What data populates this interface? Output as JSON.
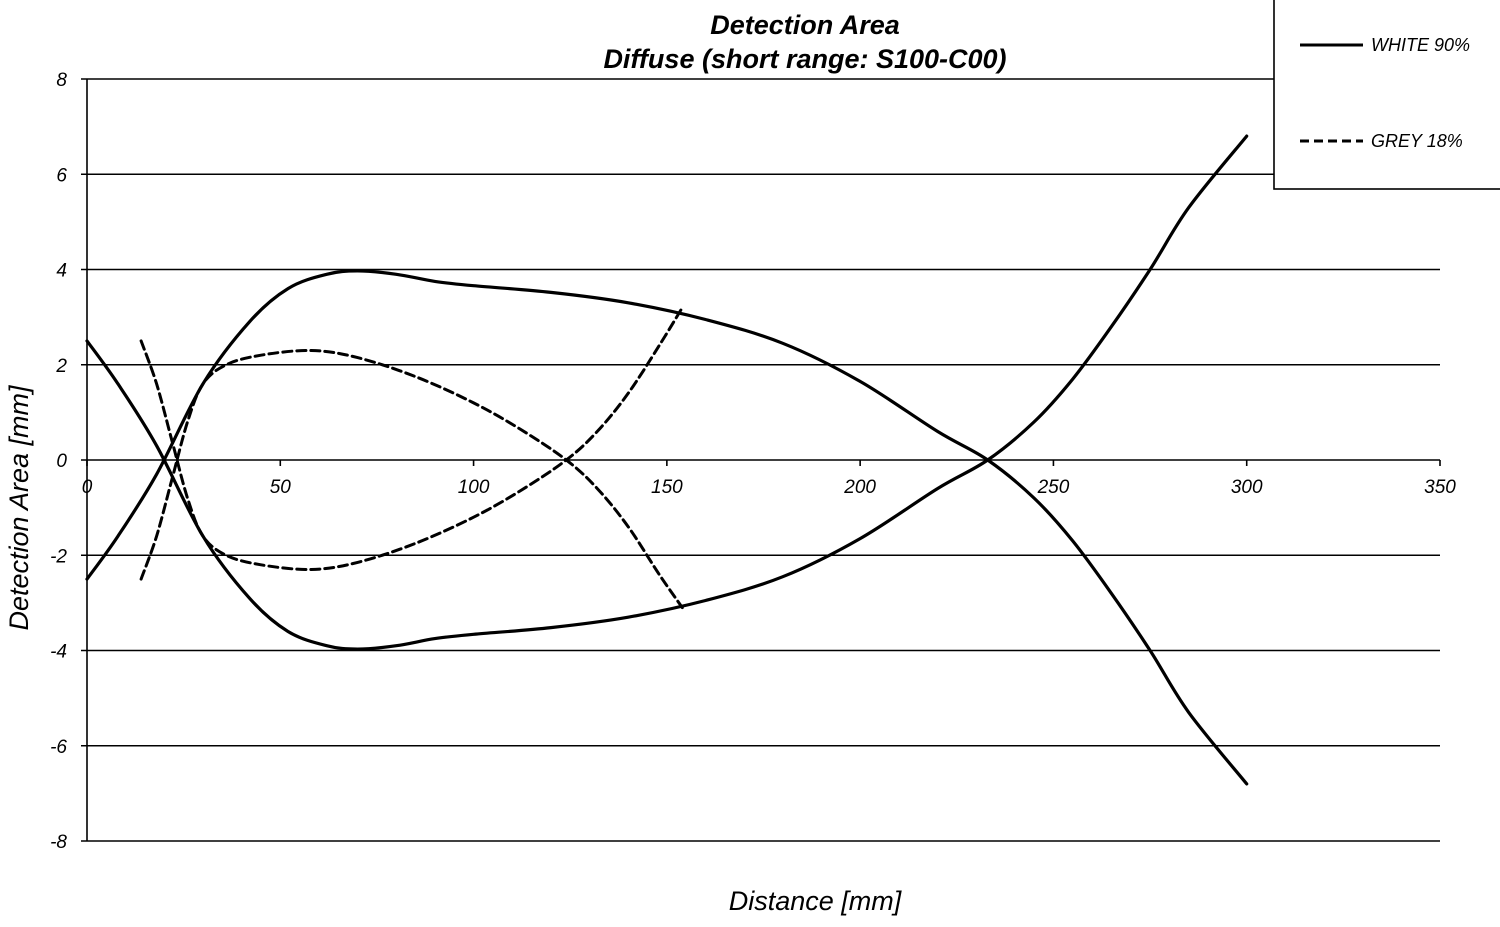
{
  "chart_data": {
    "type": "line",
    "title": "Detection Area",
    "subtitle": "Diffuse (short range: S100-C00)",
    "xlabel": "Distance [mm]",
    "ylabel": "Detection Area [mm]",
    "xlim": [
      0,
      350
    ],
    "ylim": [
      -8,
      8
    ],
    "xticks": [
      0,
      50,
      100,
      150,
      200,
      250,
      300,
      350
    ],
    "yticks": [
      8,
      6,
      4,
      2,
      0,
      -2,
      -4,
      -6,
      -8
    ],
    "grid": "horizontal",
    "legend_position": "top-right",
    "series": [
      {
        "name": "WHITE 90%",
        "style": "solid",
        "color": "#000000",
        "segments": [
          [
            [
              0,
              -2.5
            ],
            [
              8,
              -1.6
            ],
            [
              18,
              -0.3
            ],
            [
              30,
              1.6
            ],
            [
              42,
              2.9
            ],
            [
              52,
              3.6
            ],
            [
              62,
              3.9
            ],
            [
              70,
              3.97
            ],
            [
              80,
              3.9
            ],
            [
              90,
              3.75
            ],
            [
              100,
              3.66
            ],
            [
              120,
              3.52
            ],
            [
              140,
              3.3
            ],
            [
              160,
              2.95
            ],
            [
              180,
              2.45
            ],
            [
              200,
              1.65
            ],
            [
              220,
              0.6
            ],
            [
              233,
              0
            ],
            [
              245,
              -0.8
            ],
            [
              255,
              -1.7
            ],
            [
              265,
              -2.8
            ],
            [
              275,
              -4.0
            ],
            [
              285,
              -5.3
            ],
            [
              300,
              -6.8
            ]
          ],
          [
            [
              0,
              2.5
            ],
            [
              8,
              1.6
            ],
            [
              18,
              0.3
            ],
            [
              30,
              -1.6
            ],
            [
              42,
              -2.9
            ],
            [
              52,
              -3.6
            ],
            [
              62,
              -3.9
            ],
            [
              70,
              -3.97
            ],
            [
              80,
              -3.9
            ],
            [
              90,
              -3.75
            ],
            [
              100,
              -3.66
            ],
            [
              120,
              -3.52
            ],
            [
              140,
              -3.3
            ],
            [
              160,
              -2.95
            ],
            [
              180,
              -2.45
            ],
            [
              200,
              -1.65
            ],
            [
              220,
              -0.6
            ],
            [
              233,
              0
            ],
            [
              245,
              0.8
            ],
            [
              255,
              1.7
            ],
            [
              265,
              2.8
            ],
            [
              275,
              4.0
            ],
            [
              285,
              5.3
            ],
            [
              300,
              6.8
            ]
          ]
        ]
      },
      {
        "name": "GREY 18%",
        "style": "dashed",
        "color": "#000000",
        "segments": [
          [
            [
              14,
              -2.5
            ],
            [
              18,
              -1.6
            ],
            [
              22,
              -0.4
            ],
            [
              26,
              0.8
            ],
            [
              30,
              1.6
            ],
            [
              36,
              2.0
            ],
            [
              45,
              2.2
            ],
            [
              58,
              2.3
            ],
            [
              70,
              2.15
            ],
            [
              85,
              1.75
            ],
            [
              100,
              1.2
            ],
            [
              112,
              0.65
            ],
            [
              124,
              0
            ],
            [
              132,
              -0.6
            ],
            [
              140,
              -1.4
            ],
            [
              148,
              -2.4
            ],
            [
              154,
              -3.1
            ]
          ],
          [
            [
              14,
              2.5
            ],
            [
              18,
              1.6
            ],
            [
              22,
              0.4
            ],
            [
              26,
              -0.8
            ],
            [
              30,
              -1.6
            ],
            [
              36,
              -2.0
            ],
            [
              45,
              -2.2
            ],
            [
              58,
              -2.3
            ],
            [
              70,
              -2.15
            ],
            [
              85,
              -1.75
            ],
            [
              100,
              -1.2
            ],
            [
              112,
              -0.65
            ],
            [
              124,
              0
            ],
            [
              132,
              0.6
            ],
            [
              140,
              1.4
            ],
            [
              148,
              2.4
            ],
            [
              154,
              3.2
            ]
          ]
        ]
      }
    ]
  }
}
